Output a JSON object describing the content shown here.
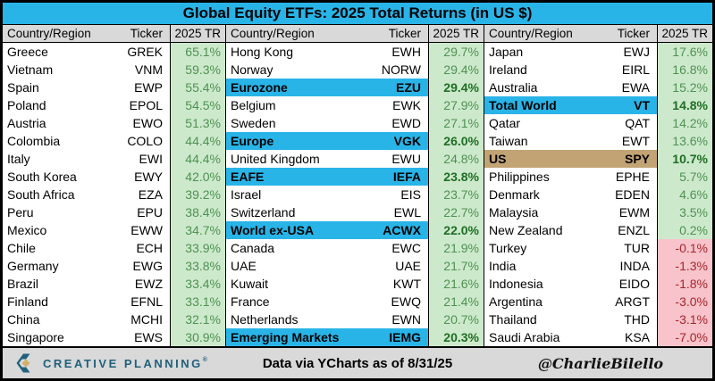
{
  "title": "Global Equity ETFs: 2025 Total Returns (in US $)",
  "chart_data": {
    "type": "table",
    "title": "Global Equity ETFs: 2025 Total Returns (in US $)",
    "columns": [
      "Country/Region",
      "Ticker",
      "2025 TR"
    ],
    "highlight_codes": {
      "blue": "aggregate/region index highlighted blue",
      "tan": "US highlighted tan",
      "": "no highlight"
    },
    "panels": [
      {
        "rows": [
          {
            "country": "Greece",
            "ticker": "GREK",
            "value": "65.1%",
            "highlight": ""
          },
          {
            "country": "Vietnam",
            "ticker": "VNM",
            "value": "59.3%",
            "highlight": ""
          },
          {
            "country": "Spain",
            "ticker": "EWP",
            "value": "55.4%",
            "highlight": ""
          },
          {
            "country": "Poland",
            "ticker": "EPOL",
            "value": "54.5%",
            "highlight": ""
          },
          {
            "country": "Austria",
            "ticker": "EWO",
            "value": "51.3%",
            "highlight": ""
          },
          {
            "country": "Colombia",
            "ticker": "COLO",
            "value": "44.4%",
            "highlight": ""
          },
          {
            "country": "Italy",
            "ticker": "EWI",
            "value": "44.4%",
            "highlight": ""
          },
          {
            "country": "South Korea",
            "ticker": "EWY",
            "value": "42.0%",
            "highlight": ""
          },
          {
            "country": "South Africa",
            "ticker": "EZA",
            "value": "39.2%",
            "highlight": ""
          },
          {
            "country": "Peru",
            "ticker": "EPU",
            "value": "38.4%",
            "highlight": ""
          },
          {
            "country": "Mexico",
            "ticker": "EWW",
            "value": "34.7%",
            "highlight": ""
          },
          {
            "country": "Chile",
            "ticker": "ECH",
            "value": "33.9%",
            "highlight": ""
          },
          {
            "country": "Germany",
            "ticker": "EWG",
            "value": "33.8%",
            "highlight": ""
          },
          {
            "country": "Brazil",
            "ticker": "EWZ",
            "value": "33.4%",
            "highlight": ""
          },
          {
            "country": "Finland",
            "ticker": "EFNL",
            "value": "33.1%",
            "highlight": ""
          },
          {
            "country": "China",
            "ticker": "MCHI",
            "value": "32.1%",
            "highlight": ""
          },
          {
            "country": "Singapore",
            "ticker": "EWS",
            "value": "30.9%",
            "highlight": ""
          }
        ]
      },
      {
        "rows": [
          {
            "country": "Hong Kong",
            "ticker": "EWH",
            "value": "29.7%",
            "highlight": ""
          },
          {
            "country": "Norway",
            "ticker": "NORW",
            "value": "29.4%",
            "highlight": ""
          },
          {
            "country": "Eurozone",
            "ticker": "EZU",
            "value": "29.4%",
            "highlight": "blue"
          },
          {
            "country": "Belgium",
            "ticker": "EWK",
            "value": "27.9%",
            "highlight": ""
          },
          {
            "country": "Sweden",
            "ticker": "EWD",
            "value": "27.1%",
            "highlight": ""
          },
          {
            "country": "Europe",
            "ticker": "VGK",
            "value": "26.0%",
            "highlight": "blue"
          },
          {
            "country": "United Kingdom",
            "ticker": "EWU",
            "value": "24.8%",
            "highlight": ""
          },
          {
            "country": "EAFE",
            "ticker": "IEFA",
            "value": "23.8%",
            "highlight": "blue"
          },
          {
            "country": "Israel",
            "ticker": "EIS",
            "value": "23.7%",
            "highlight": ""
          },
          {
            "country": "Switzerland",
            "ticker": "EWL",
            "value": "22.7%",
            "highlight": ""
          },
          {
            "country": "World ex-USA",
            "ticker": "ACWX",
            "value": "22.0%",
            "highlight": "blue"
          },
          {
            "country": "Canada",
            "ticker": "EWC",
            "value": "21.9%",
            "highlight": ""
          },
          {
            "country": "UAE",
            "ticker": "UAE",
            "value": "21.7%",
            "highlight": ""
          },
          {
            "country": "Kuwait",
            "ticker": "KWT",
            "value": "21.6%",
            "highlight": ""
          },
          {
            "country": "France",
            "ticker": "EWQ",
            "value": "21.4%",
            "highlight": ""
          },
          {
            "country": "Netherlands",
            "ticker": "EWN",
            "value": "20.7%",
            "highlight": ""
          },
          {
            "country": "Emerging Markets",
            "ticker": "IEMG",
            "value": "20.3%",
            "highlight": "blue"
          }
        ]
      },
      {
        "rows": [
          {
            "country": "Japan",
            "ticker": "EWJ",
            "value": "17.6%",
            "highlight": ""
          },
          {
            "country": "Ireland",
            "ticker": "EIRL",
            "value": "16.8%",
            "highlight": ""
          },
          {
            "country": "Australia",
            "ticker": "EWA",
            "value": "15.2%",
            "highlight": ""
          },
          {
            "country": "Total World",
            "ticker": "VT",
            "value": "14.8%",
            "highlight": "blue"
          },
          {
            "country": "Qatar",
            "ticker": "QAT",
            "value": "14.2%",
            "highlight": ""
          },
          {
            "country": "Taiwan",
            "ticker": "EWT",
            "value": "13.6%",
            "highlight": ""
          },
          {
            "country": "US",
            "ticker": "SPY",
            "value": "10.7%",
            "highlight": "tan"
          },
          {
            "country": "Philippines",
            "ticker": "EPHE",
            "value": "5.7%",
            "highlight": ""
          },
          {
            "country": "Denmark",
            "ticker": "EDEN",
            "value": "4.6%",
            "highlight": ""
          },
          {
            "country": "Malaysia",
            "ticker": "EWM",
            "value": "3.5%",
            "highlight": ""
          },
          {
            "country": "New Zealand",
            "ticker": "ENZL",
            "value": "0.2%",
            "highlight": ""
          },
          {
            "country": "Turkey",
            "ticker": "TUR",
            "value": "-0.1%",
            "highlight": ""
          },
          {
            "country": "India",
            "ticker": "INDA",
            "value": "-1.3%",
            "highlight": ""
          },
          {
            "country": "Indonesia",
            "ticker": "EIDO",
            "value": "-1.8%",
            "highlight": ""
          },
          {
            "country": "Argentina",
            "ticker": "ARGT",
            "value": "-3.0%",
            "highlight": ""
          },
          {
            "country": "Thailand",
            "ticker": "THD",
            "value": "-3.1%",
            "highlight": ""
          },
          {
            "country": "Saudi Arabia",
            "ticker": "KSA",
            "value": "-7.0%",
            "highlight": ""
          }
        ]
      }
    ]
  },
  "footer": {
    "logo": "CREATIVE PLANNING",
    "logo_mark": "®",
    "source": "Data via YCharts as of 8/31/25",
    "handle": "@CharlieBilello"
  },
  "colors": {
    "accent_blue": "#29b4e8",
    "highlight_tan": "#c2a474",
    "positive_bg": "#cde9cc",
    "positive_text": "#4e9151",
    "positive_bold_text": "#1e6e23",
    "negative_bg": "#f8c3ca",
    "negative_text": "#a6252e",
    "header_bg": "#d9d9d9",
    "logo_teal": "#20607c",
    "logo_gold": "#d0b06a"
  }
}
